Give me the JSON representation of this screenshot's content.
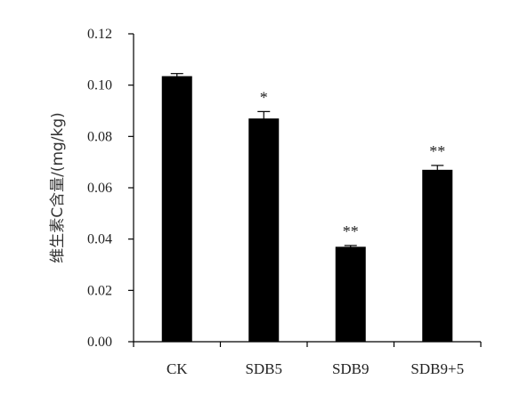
{
  "chart_data": {
    "type": "bar",
    "title": "",
    "xlabel": "",
    "ylabel": "维生素C含量/(mg/kg)",
    "categories": [
      "CK",
      "SDB5",
      "SDB9",
      "SDB9+5"
    ],
    "values": [
      0.1035,
      0.087,
      0.037,
      0.067
    ],
    "errors": [
      0.001,
      0.0027,
      0.0005,
      0.0017
    ],
    "annotations": [
      "",
      "*",
      "**",
      "**"
    ],
    "ylim": [
      0,
      0.12
    ],
    "yticks": [
      "0.00",
      "0.02",
      "0.04",
      "0.06",
      "0.08",
      "0.10",
      "0.12"
    ],
    "grid": false,
    "legend": "none",
    "bar_color": "#000000"
  }
}
